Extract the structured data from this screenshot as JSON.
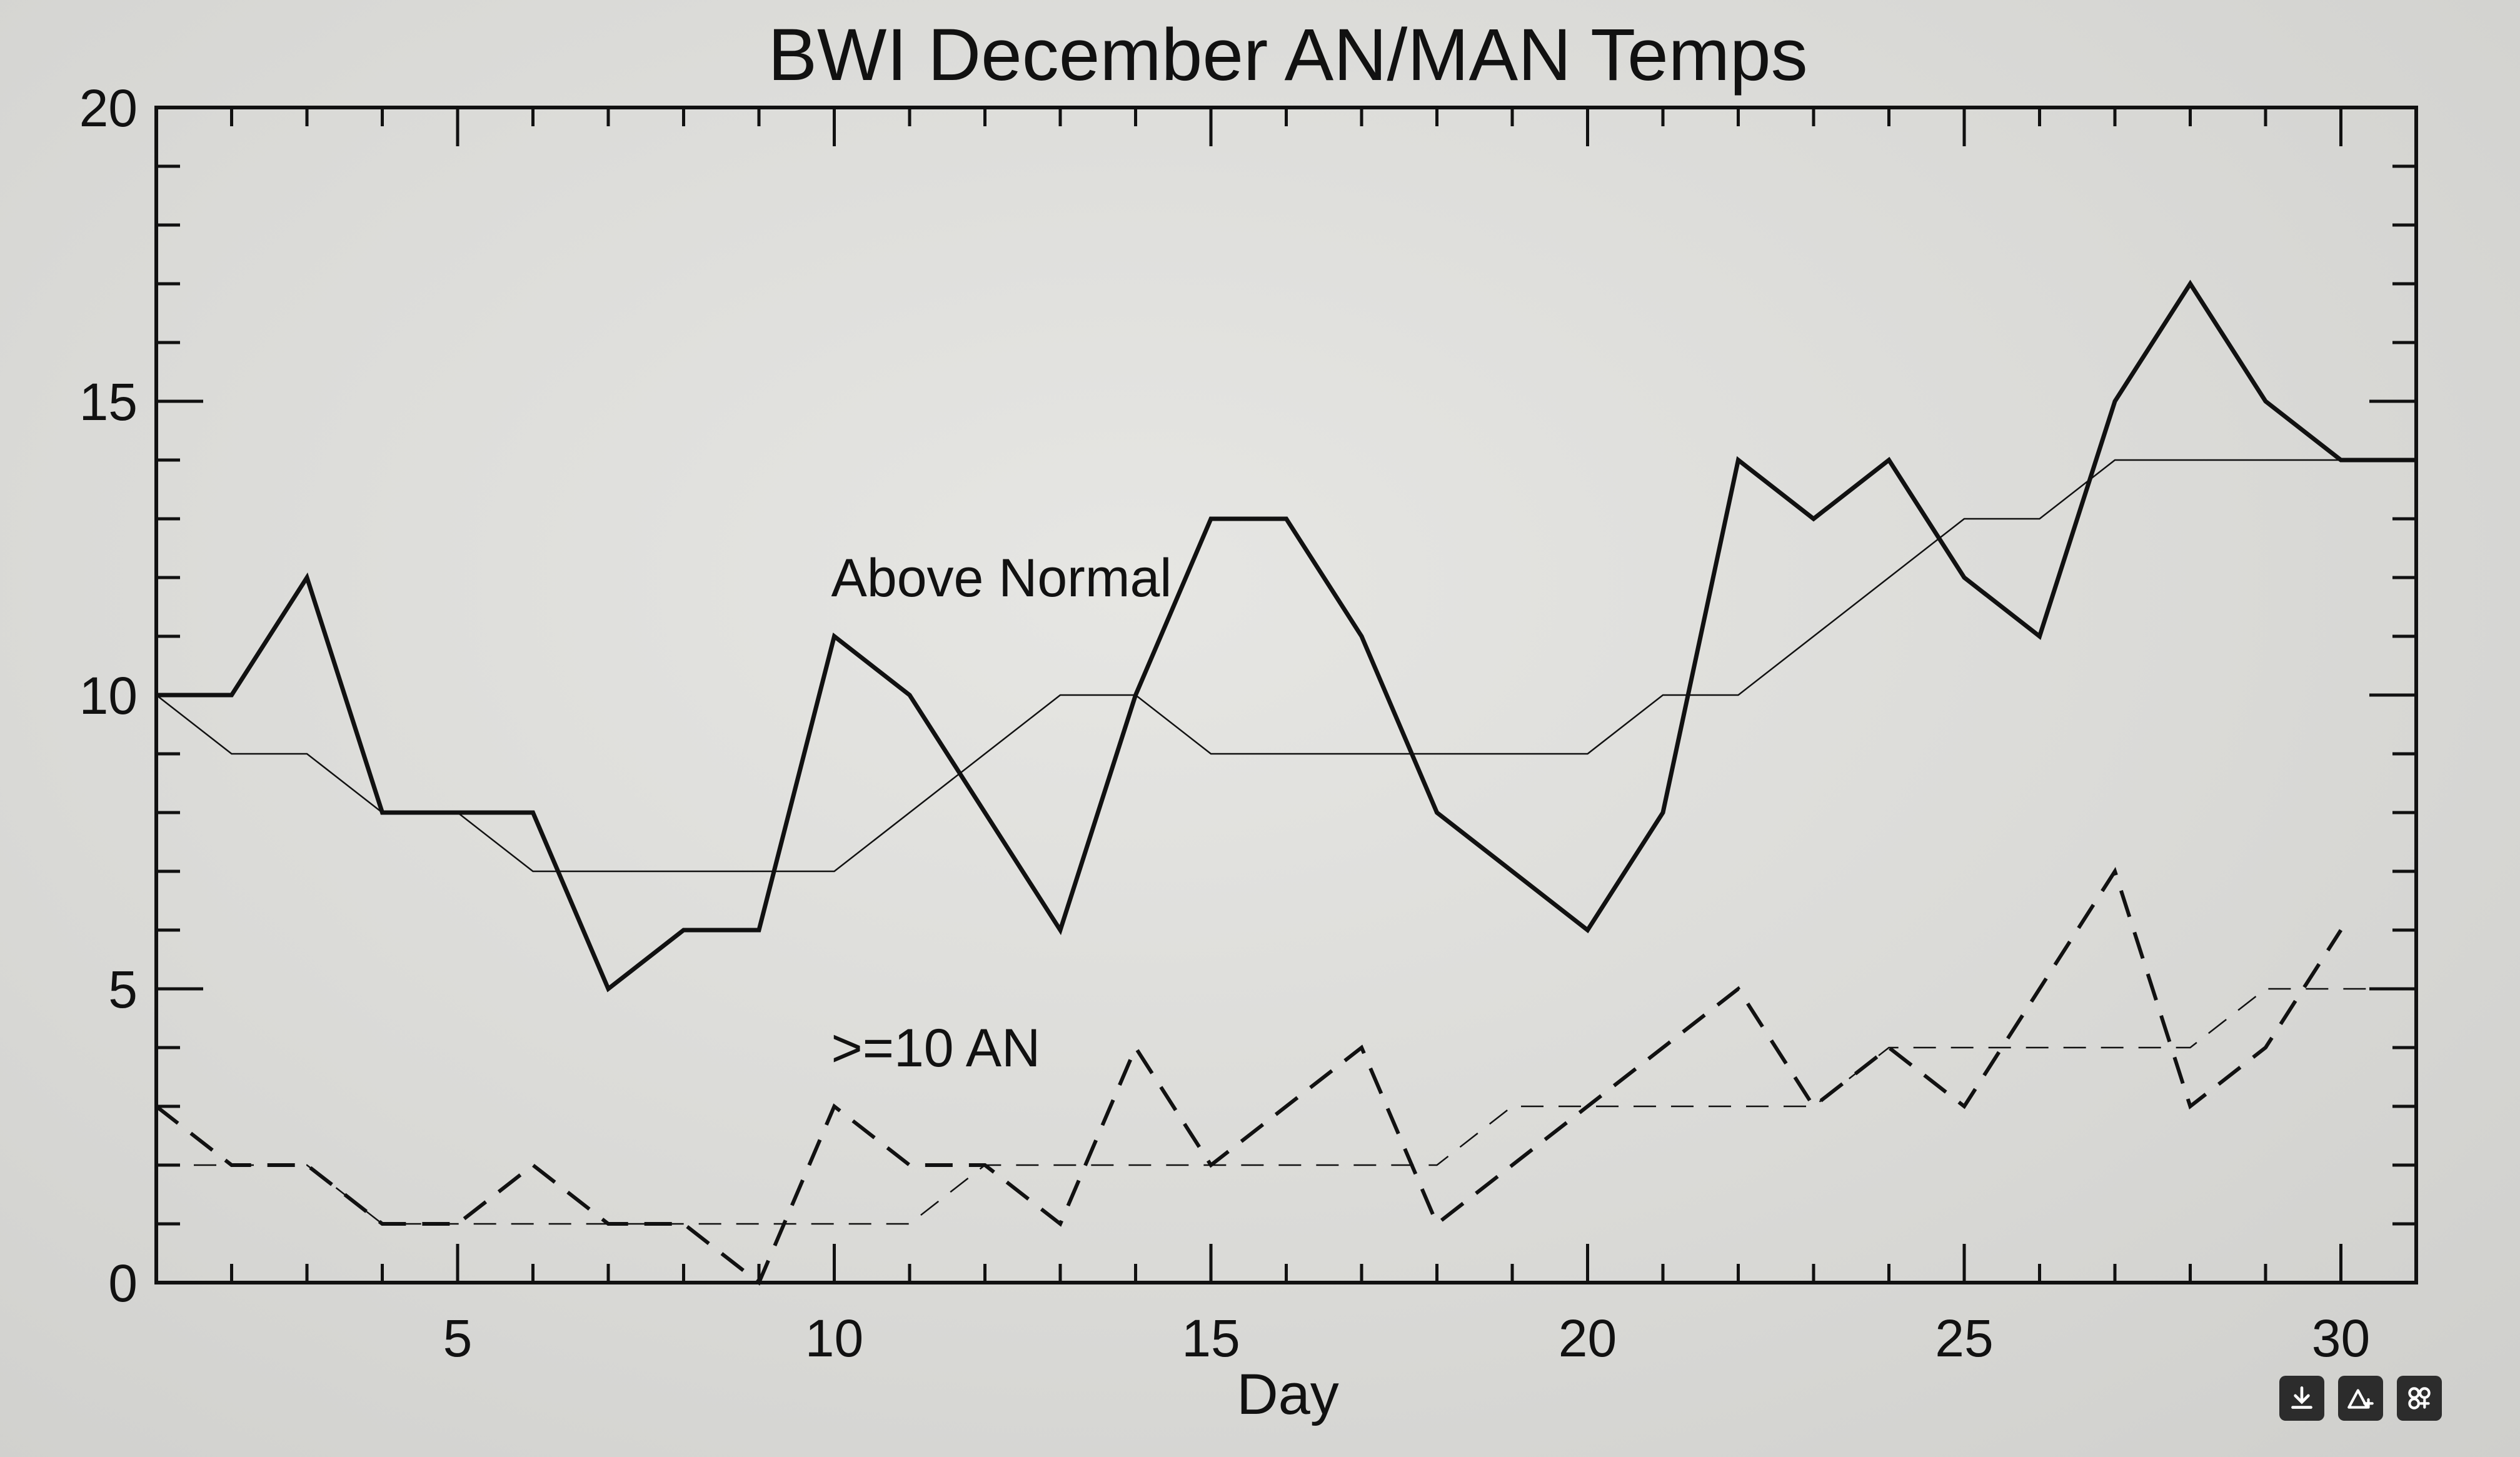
{
  "chart_data": {
    "type": "line",
    "title": "BWI December AN/MAN Temps",
    "xlabel": "Day",
    "ylabel": "",
    "xlim": [
      1,
      31
    ],
    "ylim": [
      0,
      20
    ],
    "xticks": [
      5,
      10,
      15,
      20,
      25,
      30
    ],
    "yticks": [
      0,
      5,
      10,
      15,
      20
    ],
    "grid": false,
    "annotations": [
      {
        "text": "Above Normal",
        "x": 10,
        "y": 12
      },
      {
        "text": ">=10 AN",
        "x": 10,
        "y": 4
      }
    ],
    "series": [
      {
        "style": "solid-thick",
        "x": [
          1,
          2,
          3,
          4,
          5,
          6,
          7,
          8,
          9,
          10,
          11,
          12,
          13,
          14,
          15,
          16,
          17,
          18,
          19,
          20,
          21,
          22,
          23,
          24,
          25,
          26,
          27,
          28,
          29,
          30,
          31
        ],
        "values": [
          10,
          10,
          12,
          8,
          8,
          8,
          5,
          6,
          6,
          11,
          10,
          8,
          6,
          10,
          13,
          13,
          11,
          8,
          7,
          6,
          8,
          14,
          13,
          14,
          12,
          11,
          15,
          17,
          15,
          14,
          14
        ]
      },
      {
        "style": "solid-thin",
        "x": [
          1,
          2,
          3,
          4,
          5,
          6,
          7,
          8,
          9,
          10,
          11,
          12,
          13,
          14,
          15,
          16,
          17,
          18,
          19,
          20,
          21,
          22,
          23,
          24,
          25,
          26,
          27,
          28,
          29,
          30,
          31
        ],
        "values": [
          10,
          9,
          9,
          8,
          8,
          7,
          7,
          7,
          7,
          7,
          8,
          9,
          10,
          10,
          9,
          9,
          9,
          9,
          9,
          9,
          10,
          10,
          11,
          12,
          13,
          13,
          14,
          14,
          14,
          14,
          14
        ]
      },
      {
        "style": "dashed-thick",
        "x": [
          1,
          2,
          3,
          4,
          5,
          6,
          7,
          8,
          9,
          10,
          11,
          12,
          13,
          14,
          15,
          16,
          17,
          18,
          19,
          20,
          21,
          22,
          23,
          24,
          25,
          26,
          27,
          28,
          29,
          30
        ],
        "values": [
          3,
          2,
          2,
          1,
          1,
          2,
          1,
          1,
          0,
          3,
          2,
          2,
          1,
          4,
          2,
          3,
          4,
          1,
          2,
          3,
          4,
          5,
          3,
          4,
          3,
          5,
          7,
          3,
          4,
          6
        ]
      },
      {
        "style": "dashed-thin",
        "x": [
          1,
          2,
          3,
          4,
          5,
          6,
          7,
          8,
          9,
          10,
          11,
          12,
          13,
          14,
          15,
          16,
          17,
          18,
          19,
          20,
          21,
          22,
          23,
          24,
          25,
          26,
          27,
          28,
          29,
          30,
          31
        ],
        "values": [
          2,
          2,
          2,
          1,
          1,
          1,
          1,
          1,
          1,
          1,
          1,
          2,
          2,
          2,
          2,
          2,
          2,
          2,
          3,
          3,
          3,
          3,
          3,
          4,
          4,
          4,
          4,
          4,
          5,
          5,
          5
        ]
      }
    ]
  },
  "toolbar": {
    "buttons": [
      {
        "icon": "download-icon"
      },
      {
        "icon": "add-to-photos-icon"
      },
      {
        "icon": "visual-lookup-icon"
      }
    ]
  }
}
